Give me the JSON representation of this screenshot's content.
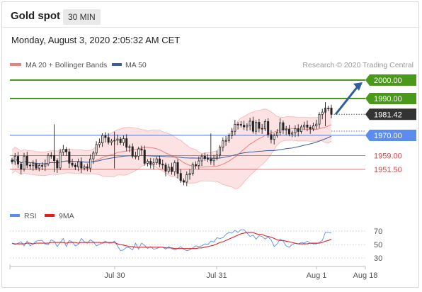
{
  "header": {
    "title": "Gold spot",
    "timeframe": "30 MIN",
    "datetime": "Monday, August 3, 2020 2:05:32 AM CET"
  },
  "legend": {
    "ma20_label": "MA 20 + Bollinger Bands",
    "ma50_label": "MA 50",
    "credit": "Research © 2020 Trading Central"
  },
  "colors": {
    "resistance": "#4a9a1a",
    "support": "#5b8cf0",
    "red_level": "#d94a4a",
    "candle": "#222222",
    "bollinger_fill": "#fbd8d8",
    "ma20": "#f08080",
    "ma50": "#3a5f9f",
    "arrow": "#2f5f9e",
    "rsi": "#5b8cf0",
    "rsi_ma": "#e02020",
    "price_badge": "#333333"
  },
  "chart_data": [
    {
      "type": "line",
      "title": "Gold spot",
      "x_ticks": [
        "Jul 30",
        "Jul 31",
        "Aug 1",
        "Aug 18"
      ],
      "ylim": [
        1925,
        2005
      ],
      "price_levels": [
        {
          "value": 2000.0,
          "label": "2000.00",
          "kind": "resistance"
        },
        {
          "value": 1990.0,
          "label": "1990.00",
          "kind": "resistance"
        },
        {
          "value": 1981.42,
          "label": "1981.42",
          "kind": "last"
        },
        {
          "value": 1970.0,
          "label": "1970.00",
          "kind": "support"
        },
        {
          "value": 1959.0,
          "label": "1959.00",
          "kind": "support"
        },
        {
          "value": 1951.5,
          "label": "1951.50",
          "kind": "support"
        }
      ],
      "price_series": [
        1955.6,
        1958.6,
        1954.4,
        1951.6,
        1958.7,
        1953.8,
        1953.5,
        1954.6,
        1952.2,
        1953.6,
        1953.3,
        1954.5,
        1959.1,
        1959.0,
        1956.3,
        1952.3,
        1960.8,
        1962.4,
        1961.0,
        1954.9,
        1953.8,
        1952.8,
        1955.6,
        1952.2,
        1952.9,
        1952.2,
        1957.2,
        1960.4,
        1965.0,
        1965.9,
        1969.9,
        1968.8,
        1966.2,
        1966.9,
        1967.3,
        1968.0,
        1966.0,
        1968.2,
        1963.5,
        1963.8,
        1958.7,
        1958.7,
        1962.6,
        1962.0,
        1954.8,
        1955.9,
        1954.2,
        1955.1,
        1957.2,
        1954.4,
        1953.9,
        1950.5,
        1952.7,
        1950.3,
        1955.2,
        1949.3,
        1945.4,
        1944.6,
        1948.6,
        1949.3,
        1954.1,
        1953.6,
        1956.1,
        1958.7,
        1957.4,
        1957.2,
        1956.2,
        1957.6,
        1959.3,
        1963.5,
        1967.0,
        1967.2,
        1969.8,
        1972.2,
        1976.0,
        1975.9,
        1975.5,
        1974.6,
        1975.4,
        1977.7,
        1972.2,
        1977.1,
        1973.8,
        1973.5,
        1977.5,
        1970.4,
        1967.8,
        1969.9,
        1971.6,
        1976.8,
        1972.9,
        1973.3,
        1970.7,
        1971.3,
        1973.6,
        1972.1,
        1974.6,
        1975.6,
        1974.4,
        1973.5,
        1975.1,
        1976.1,
        1981.4,
        1982.6,
        1984.8,
        1984.8,
        1981.4
      ]
    },
    {
      "type": "line",
      "title": "RSI",
      "ylim": [
        20,
        80
      ],
      "y_ticks": [
        30,
        50,
        70
      ],
      "series": [
        {
          "name": "RSI",
          "values": [
            52,
            50,
            52,
            54,
            48,
            55,
            48,
            51,
            55,
            56,
            56,
            51,
            50,
            57,
            55,
            47,
            53,
            59,
            47,
            56,
            54,
            48,
            50,
            59,
            54,
            52,
            57,
            54,
            48,
            50,
            53,
            55,
            52,
            52,
            55,
            48,
            41,
            42,
            46,
            45,
            42,
            52,
            43,
            52,
            49,
            44,
            47,
            43,
            44,
            46,
            46,
            43,
            47,
            44,
            42,
            44,
            47,
            43,
            41,
            42,
            45,
            48,
            47,
            48,
            51,
            50,
            55,
            54,
            60,
            59,
            60,
            65,
            68,
            67,
            71,
            68,
            72,
            72,
            67,
            62,
            64,
            58,
            63,
            62,
            58,
            61,
            57,
            47,
            51,
            58,
            55,
            48,
            46,
            50,
            52,
            51,
            53,
            52,
            55,
            52,
            51,
            51,
            53,
            56,
            68,
            68,
            67
          ]
        },
        {
          "name": "9MA",
          "values": [
            52,
            51,
            51,
            51,
            51,
            52,
            52,
            51,
            52,
            52,
            52,
            52,
            52,
            53,
            53,
            53,
            53,
            53,
            52,
            53,
            53,
            53,
            52,
            53,
            53,
            53,
            53,
            53,
            53,
            53,
            52,
            53,
            53,
            53,
            53,
            51,
            50,
            49,
            48,
            47,
            47,
            46,
            46,
            46,
            46,
            46,
            46,
            46,
            46,
            46,
            46,
            45,
            45,
            45,
            44,
            44,
            44,
            44,
            44,
            44,
            44,
            44,
            45,
            45,
            46,
            47,
            48,
            49,
            51,
            53,
            54,
            56,
            58,
            60,
            62,
            64,
            66,
            67,
            68,
            68,
            68,
            66,
            65,
            65,
            63,
            62,
            61,
            59,
            57,
            56,
            56,
            55,
            54,
            53,
            52,
            51,
            51,
            51,
            51,
            52,
            52,
            52,
            52,
            53,
            55,
            56,
            58
          ]
        }
      ]
    }
  ]
}
